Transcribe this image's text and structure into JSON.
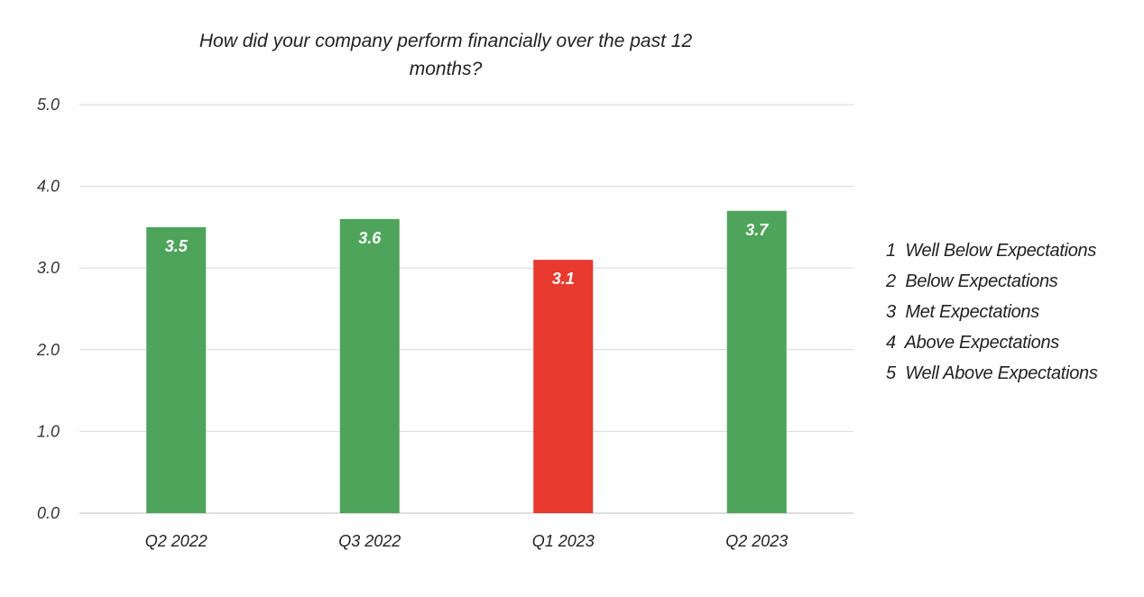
{
  "chart_data": {
    "type": "bar",
    "title_lines": [
      "How did your company perform financially over the past 12",
      "months?"
    ],
    "categories": [
      "Q2 2022",
      "Q3 2022",
      "Q1 2023",
      "Q2 2023"
    ],
    "values": [
      3.5,
      3.6,
      3.1,
      3.7
    ],
    "value_labels": [
      "3.5",
      "3.6",
      "3.1",
      "3.7"
    ],
    "bar_colors": [
      "#4ea45a",
      "#4ea45a",
      "#e8392e",
      "#4ea45a"
    ],
    "ylim": [
      0,
      5
    ],
    "yticks": [
      "0.0",
      "1.0",
      "2.0",
      "3.0",
      "4.0",
      "5.0"
    ],
    "grid": true,
    "legend_placement": "right",
    "legend": [
      "1  Well Below Expectations",
      "2  Below Expectations",
      "3  Met Expectations",
      "4  Above Expectations",
      "5  Well Above Expectations"
    ]
  }
}
